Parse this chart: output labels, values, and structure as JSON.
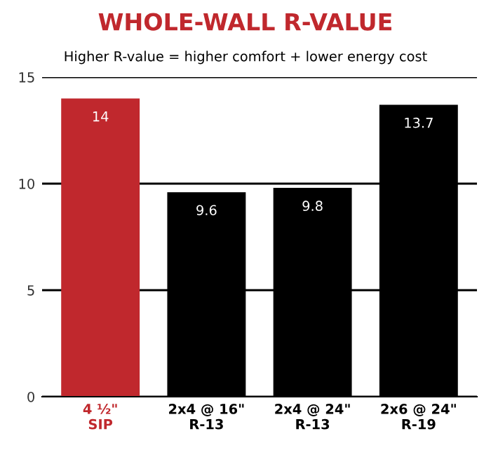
{
  "chart_data": {
    "type": "bar",
    "title": "WHOLE-WALL R-VALUE",
    "subtitle": "Higher R-value = higher comfort + lower energy cost",
    "categories": [
      "4 ½\"\nSIP",
      "2x4 @ 16\"\nR-13",
      "2x4 @ 24\"\nR-13",
      "2x6 @ 24\"\nR-19"
    ],
    "values": [
      14,
      9.6,
      9.8,
      13.7
    ],
    "colors": [
      "#c0282d",
      "#000000",
      "#000000",
      "#000000"
    ],
    "ylim": [
      0,
      15
    ],
    "yticks": [
      0,
      5,
      10,
      15
    ],
    "grid": "y",
    "data_labels": true
  }
}
